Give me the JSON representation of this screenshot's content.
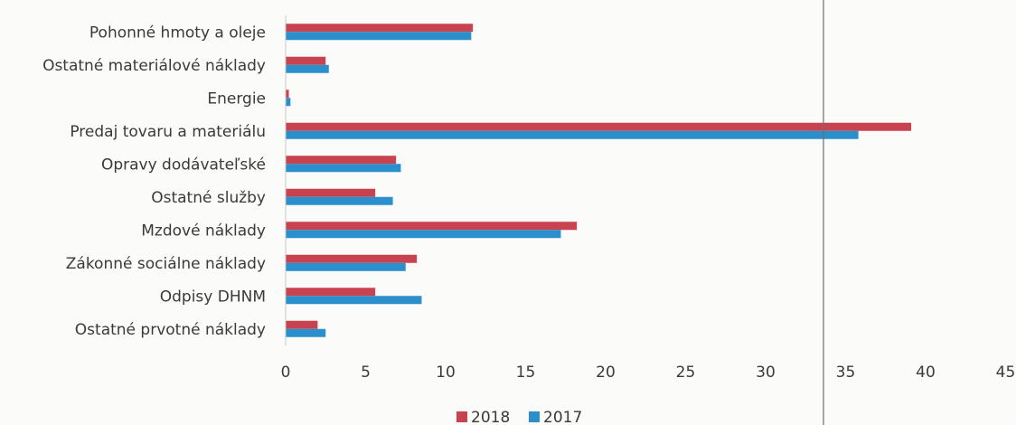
{
  "chart_data": {
    "type": "bar",
    "orientation": "horizontal",
    "categories": [
      "Pohonné hmoty a oleje",
      "Ostatné materiálové náklady",
      "Energie",
      "Predaj tovaru a materiálu",
      "Opravy dodávateľské",
      "Ostatné služby",
      "Mzdové náklady",
      "Zákonné sociálne náklady",
      "Odpisy DHNM",
      "Ostatné prvotné náklady"
    ],
    "series": [
      {
        "name": "2018",
        "color": "#c9424f",
        "values": [
          11.7,
          2.5,
          0.2,
          39.1,
          6.9,
          5.6,
          18.2,
          8.2,
          5.6,
          2.0
        ]
      },
      {
        "name": "2017",
        "color": "#2b8fcb",
        "values": [
          11.6,
          2.7,
          0.3,
          35.8,
          7.2,
          6.7,
          17.2,
          7.5,
          8.5,
          2.5
        ]
      }
    ],
    "x_ticks": [
      "0",
      "5",
      "10",
      "15",
      "20",
      "25",
      "30",
      "35",
      "40",
      "45"
    ],
    "xlim": [
      0,
      45
    ],
    "grid": false,
    "legend_position": "bottom",
    "title": "",
    "xlabel": "",
    "ylabel": ""
  }
}
